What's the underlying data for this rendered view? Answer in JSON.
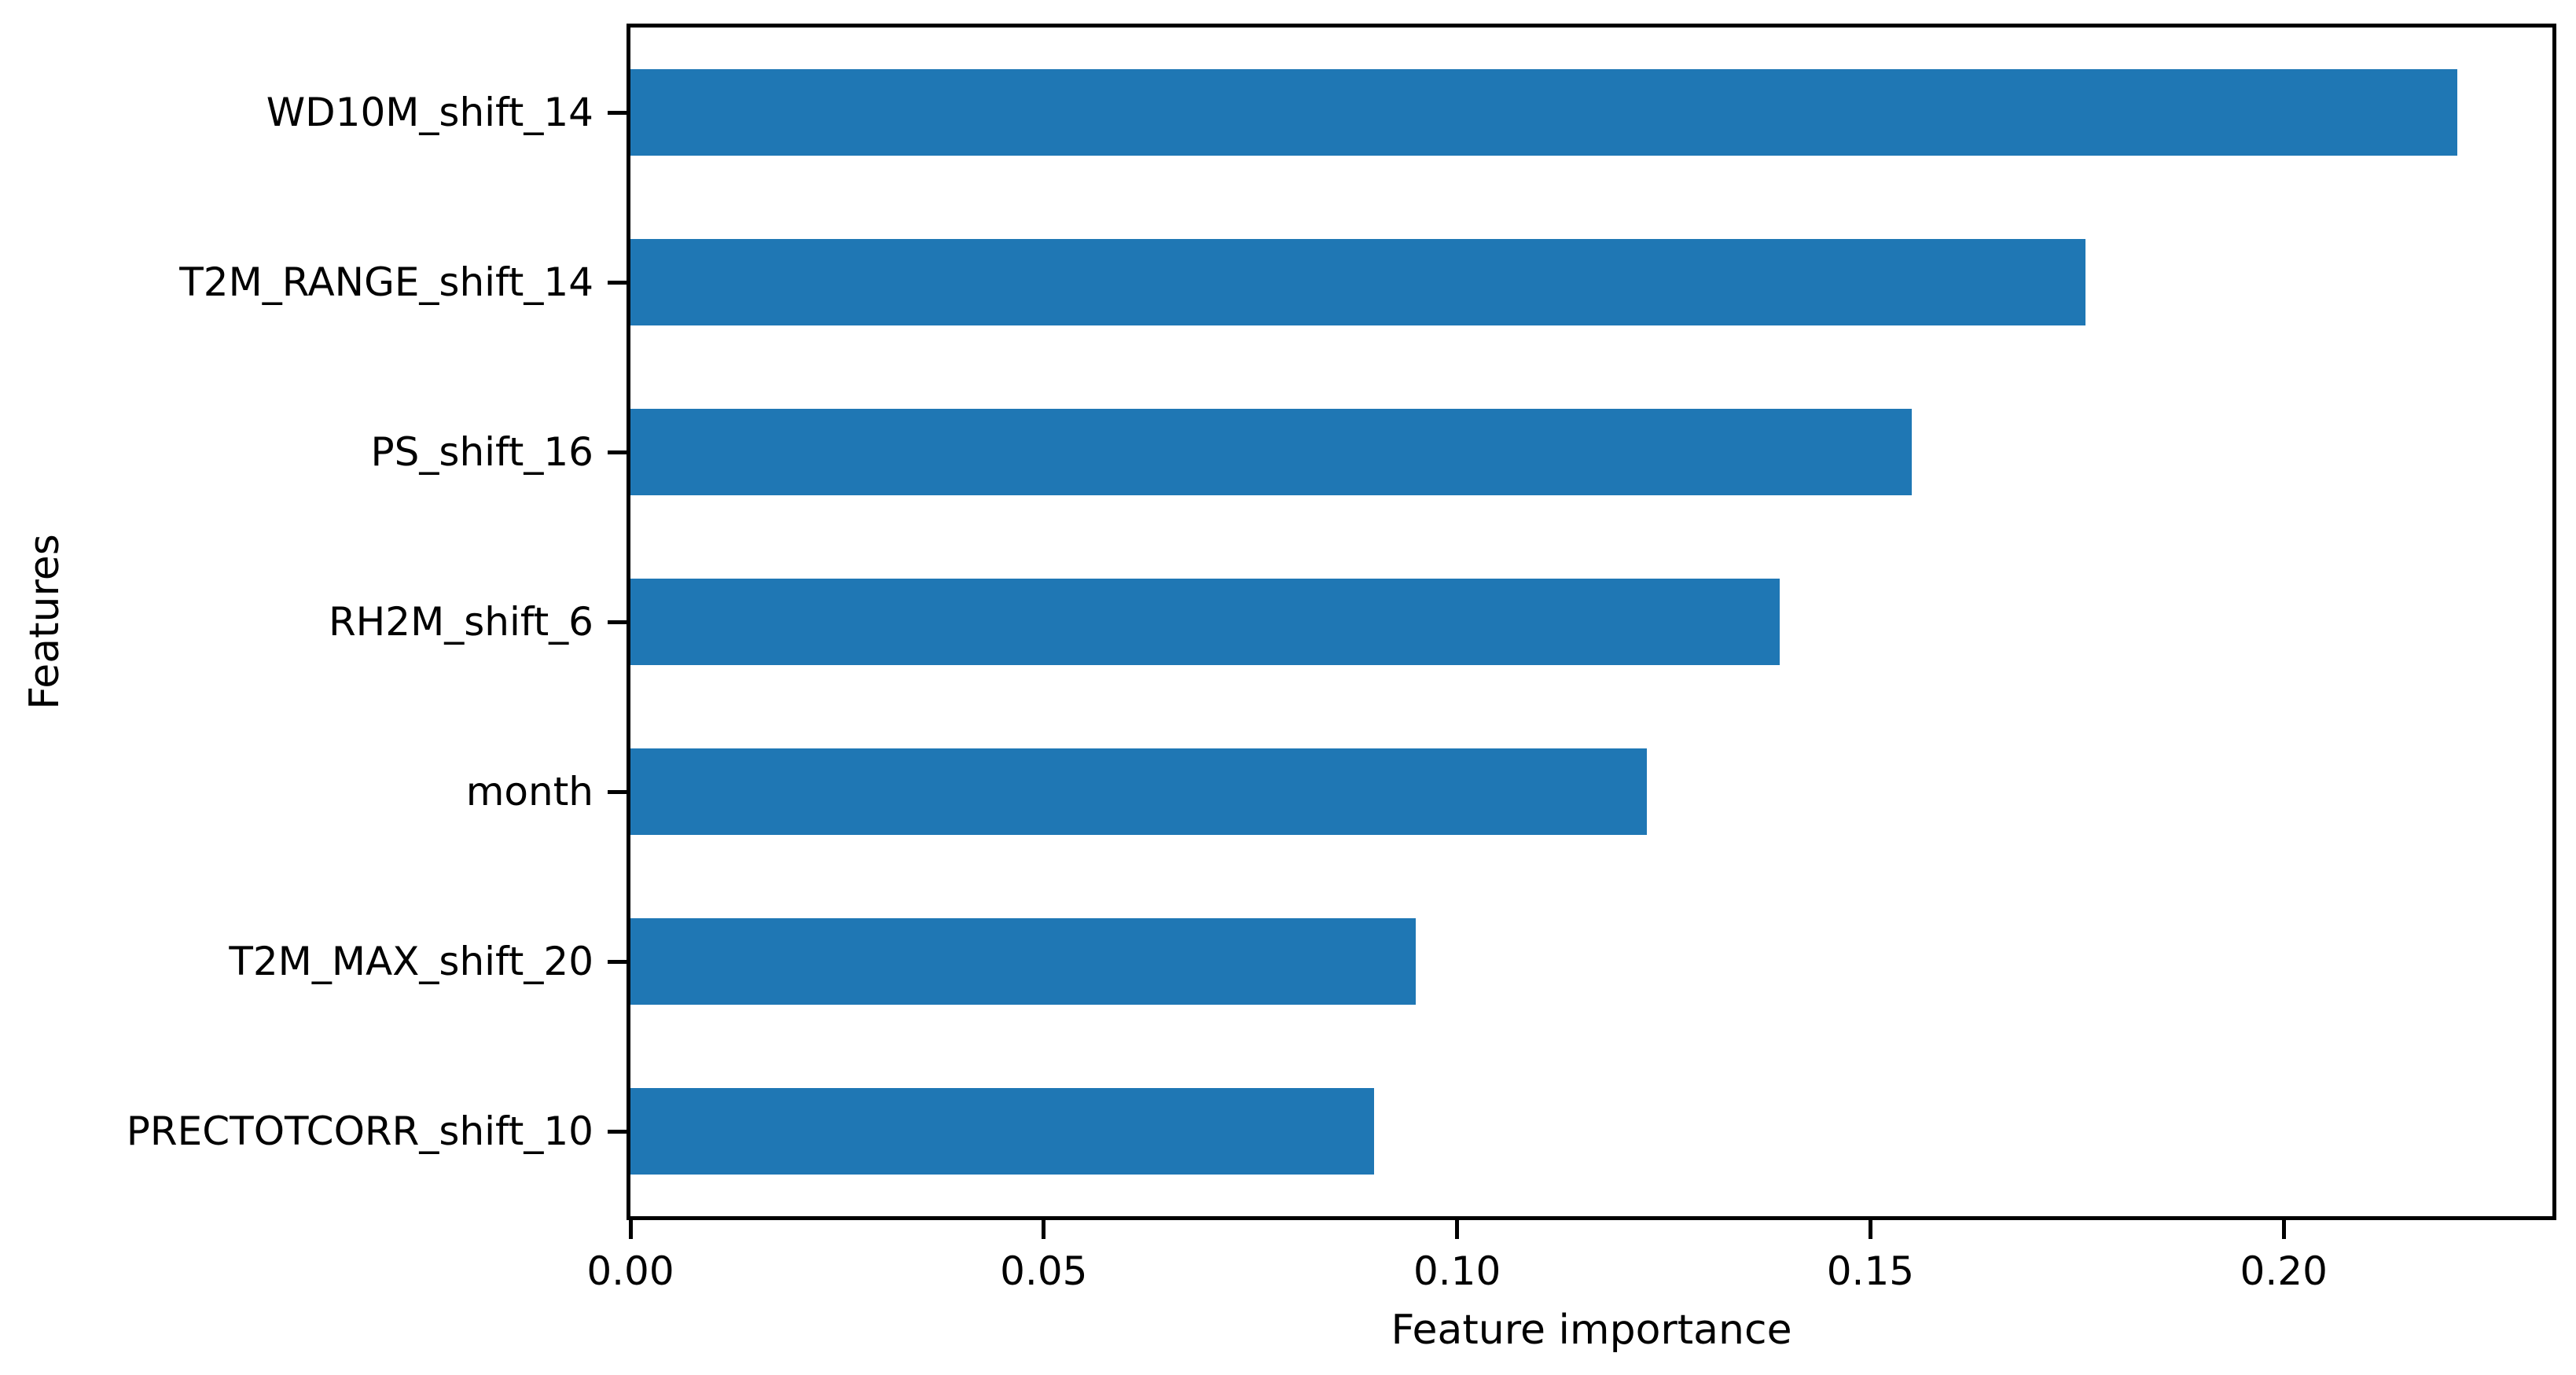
{
  "chart_data": {
    "type": "bar",
    "orientation": "horizontal",
    "title": "",
    "xlabel": "Feature importance",
    "ylabel": "Features",
    "categories": [
      "WD10M_shift_14",
      "T2M_RANGE_shift_14",
      "PS_shift_16",
      "RH2M_shift_6",
      "month",
      "T2M_MAX_shift_20",
      "PRECTOTCORR_shift_10"
    ],
    "values": [
      0.221,
      0.176,
      0.155,
      0.139,
      0.123,
      0.095,
      0.09
    ],
    "x_ticks": [
      0.0,
      0.05,
      0.1,
      0.15,
      0.2
    ],
    "x_tick_labels": [
      "0.00",
      "0.05",
      "0.10",
      "0.15",
      "0.20"
    ],
    "xlim": [
      0,
      0.2325
    ],
    "bar_color": "#1f77b4",
    "spine_color": "#000000",
    "grid": false,
    "legend_position": "none"
  }
}
